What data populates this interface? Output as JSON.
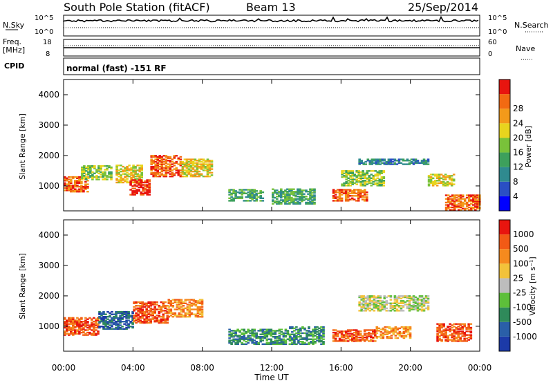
{
  "header": {
    "station": "South Pole Station (fitACF)",
    "beam": "Beam 13",
    "date": "25/Sep/2014"
  },
  "aux": {
    "nsky_label": "N.Sky",
    "nsearch_label": "N.Search",
    "nsky_ticks": [
      "10^5",
      "10^0"
    ],
    "nsearch_ticks": [
      "10^5",
      "10^0"
    ],
    "freq_label": "Freq.",
    "freq_unit": "[MHz]",
    "freq_ticks": [
      "18",
      "8"
    ],
    "nave_label": "Nave",
    "nave_ticks": [
      "60",
      "0"
    ],
    "cpid_label": "CPID",
    "cpid_text": "normal (fast) -151 RF"
  },
  "chart_data": [
    {
      "type": "heatmap",
      "name": "power",
      "ylabel": "Slant Range [km]",
      "xlabel": "",
      "xlim": [
        0,
        24
      ],
      "ylim": [
        180,
        4500
      ],
      "yticks": [
        "1000",
        "2000",
        "3000",
        "4000"
      ],
      "ytick_values": [
        1000,
        2000,
        3000,
        4000
      ],
      "colorbar": {
        "label": "Power [dB]",
        "ticks": [
          "4",
          "8",
          "12",
          "16",
          "20",
          "24",
          "28"
        ],
        "colors": [
          "#0000ff",
          "#2a4fc4",
          "#2f8a8f",
          "#3da05c",
          "#79c23a",
          "#e8d41e",
          "#f39a1a",
          "#f26a12",
          "#e8150f"
        ]
      },
      "regions": [
        {
          "t0": 0.0,
          "t1": 1.4,
          "r0": 800,
          "r1": 1300,
          "level": 7
        },
        {
          "t0": 1.0,
          "t1": 2.8,
          "r0": 1200,
          "r1": 1650,
          "level": 4
        },
        {
          "t0": 3.0,
          "t1": 4.5,
          "r0": 1100,
          "r1": 1700,
          "level": 5
        },
        {
          "t0": 3.8,
          "t1": 5.0,
          "r0": 700,
          "r1": 1200,
          "level": 8
        },
        {
          "t0": 5.0,
          "t1": 6.8,
          "r0": 1300,
          "r1": 2000,
          "level": 7
        },
        {
          "t0": 6.8,
          "t1": 8.5,
          "r0": 1300,
          "r1": 1900,
          "level": 5
        },
        {
          "t0": 9.5,
          "t1": 11.5,
          "r0": 500,
          "r1": 900,
          "level": 3
        },
        {
          "t0": 12.0,
          "t1": 14.5,
          "r0": 400,
          "r1": 900,
          "level": 3
        },
        {
          "t0": 15.5,
          "t1": 17.5,
          "r0": 500,
          "r1": 900,
          "level": 7
        },
        {
          "t0": 16.0,
          "t1": 18.5,
          "r0": 1000,
          "r1": 1500,
          "level": 4
        },
        {
          "t0": 17.0,
          "t1": 21.0,
          "r0": 1700,
          "r1": 1900,
          "level": 2
        },
        {
          "t0": 21.0,
          "t1": 22.5,
          "r0": 1000,
          "r1": 1400,
          "level": 5
        },
        {
          "t0": 22.0,
          "t1": 24.0,
          "r0": 200,
          "r1": 700,
          "level": 7
        }
      ]
    },
    {
      "type": "heatmap",
      "name": "velocity",
      "ylabel": "Slant Range [km]",
      "xlabel": "Time UT",
      "xlim": [
        0,
        24
      ],
      "ylim": [
        180,
        4500
      ],
      "xticks": [
        "00:00",
        "04:00",
        "08:00",
        "12:00",
        "16:00",
        "20:00",
        "00:00"
      ],
      "xtick_values": [
        0,
        4,
        8,
        12,
        16,
        20,
        24
      ],
      "yticks": [
        "1000",
        "2000",
        "3000",
        "4000"
      ],
      "ytick_values": [
        1000,
        2000,
        3000,
        4000
      ],
      "colorbar": {
        "label": "Velocity [m s⁻¹]",
        "ticks": [
          "1000",
          "500",
          "100",
          "25",
          "-25",
          "-100",
          "-500",
          "-1000"
        ],
        "colors": [
          "#1c3aa8",
          "#2a5fa8",
          "#2f8a5a",
          "#5dbf3a",
          "#bdbdbd",
          "#f2c23a",
          "#f58a1e",
          "#f25a16",
          "#e8150f"
        ]
      },
      "regions": [
        {
          "t0": 0.0,
          "t1": 2.0,
          "r0": 700,
          "r1": 1300,
          "level": 7
        },
        {
          "t0": 2.0,
          "t1": 4.0,
          "r0": 900,
          "r1": 1500,
          "level": 1
        },
        {
          "t0": 4.0,
          "t1": 6.0,
          "r0": 1100,
          "r1": 1800,
          "level": 7
        },
        {
          "t0": 6.0,
          "t1": 8.0,
          "r0": 1300,
          "r1": 1900,
          "level": 6
        },
        {
          "t0": 9.5,
          "t1": 13.0,
          "r0": 400,
          "r1": 900,
          "level": 2
        },
        {
          "t0": 13.0,
          "t1": 15.0,
          "r0": 400,
          "r1": 1000,
          "level": 2
        },
        {
          "t0": 15.5,
          "t1": 18.0,
          "r0": 500,
          "r1": 900,
          "level": 7
        },
        {
          "t0": 17.0,
          "t1": 21.0,
          "r0": 1500,
          "r1": 2000,
          "level": 4
        },
        {
          "t0": 18.0,
          "t1": 20.0,
          "r0": 600,
          "r1": 1000,
          "level": 6
        },
        {
          "t0": 21.5,
          "t1": 23.5,
          "r0": 500,
          "r1": 1100,
          "level": 7
        }
      ]
    }
  ]
}
